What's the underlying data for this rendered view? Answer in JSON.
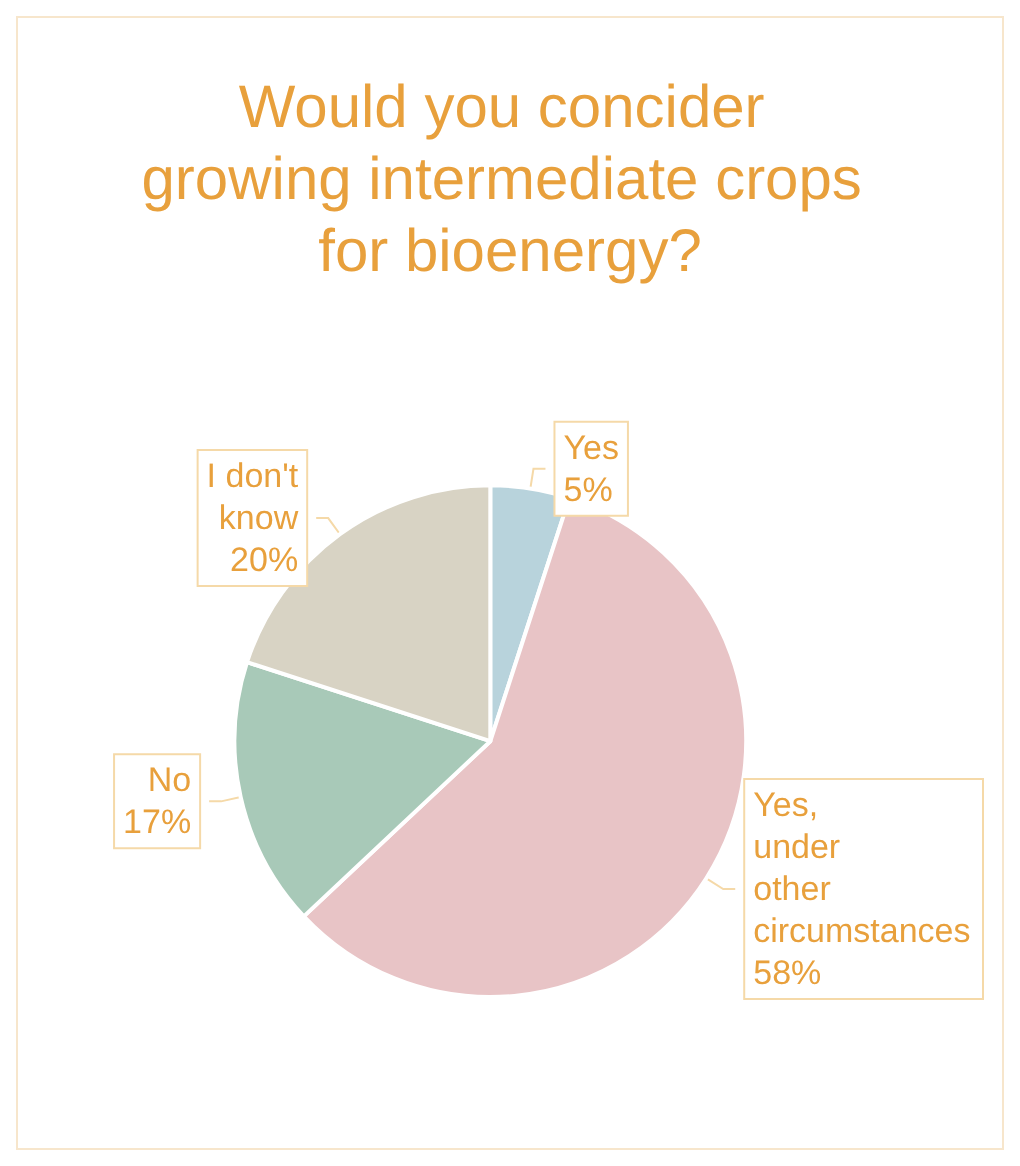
{
  "chart_data": {
    "type": "pie",
    "title": "Would you concider growing intermediate crops for bioenergy?",
    "categories": [
      "Yes",
      "Yes, under other circumstances",
      "No",
      "I don't know"
    ],
    "values": [
      5,
      58,
      17,
      20
    ],
    "colors": [
      "#b8d3dc",
      "#e8c4c6",
      "#a8c9b8",
      "#d8d3c4"
    ],
    "value_labels": [
      "5%",
      "58%",
      "17%",
      "20%"
    ],
    "legend": false
  }
}
